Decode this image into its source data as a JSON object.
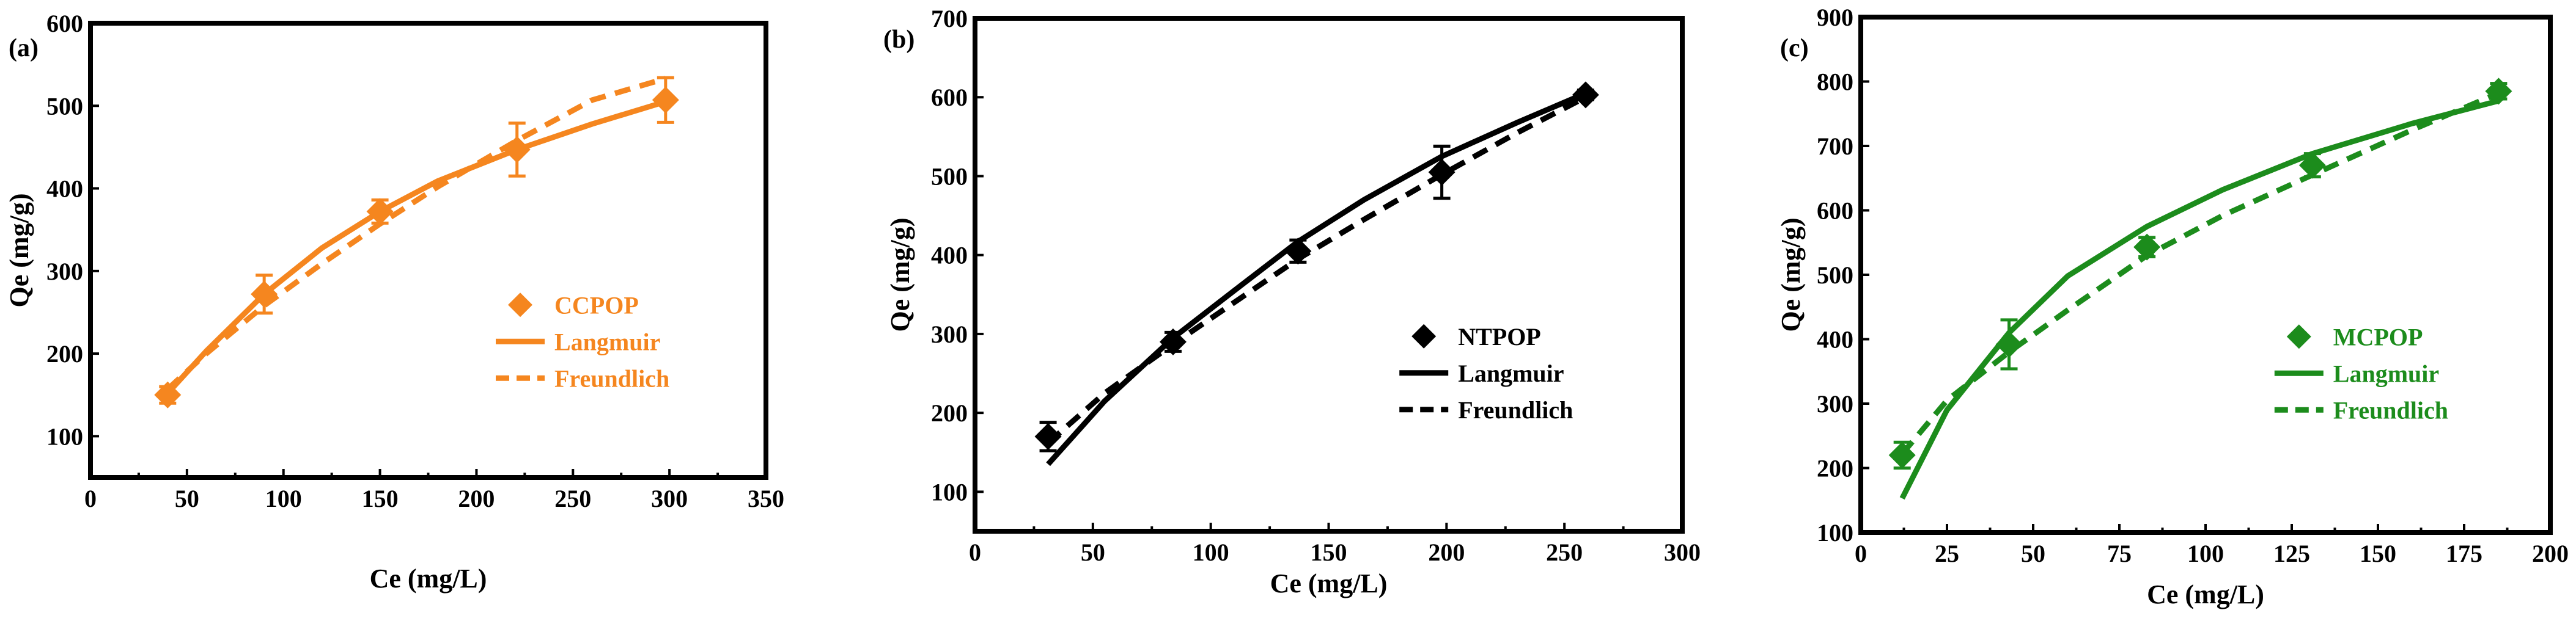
{
  "chart_data": [
    {
      "type": "scatter",
      "panel_label": "(a)",
      "color": "#F5861F",
      "xlabel": "Ce (mg/L)",
      "ylabel": "Qe (mg/g)",
      "xlim": [
        0,
        350
      ],
      "ylim": [
        50,
        600
      ],
      "xticks": [
        0,
        50,
        100,
        150,
        200,
        250,
        300,
        350
      ],
      "yticks": [
        100,
        200,
        300,
        400,
        500,
        600
      ],
      "x_tick_labels": [
        "0",
        "50",
        "100",
        "150",
        "200",
        "250",
        "300",
        "350"
      ],
      "y_tick_labels": [
        "100",
        "200",
        "300",
        "400",
        "500",
        "600"
      ],
      "legend_position": "bottom-right",
      "legend": {
        "points": "CCPOP",
        "langmuir": "Langmuir",
        "freundlich": "Freundlich"
      },
      "series": [
        {
          "name": "CCPOP",
          "kind": "points",
          "x": [
            40,
            90,
            150,
            221,
            298
          ],
          "y": [
            150,
            272,
            372,
            447,
            507
          ],
          "err": [
            10,
            23,
            14,
            32,
            27
          ]
        },
        {
          "name": "Langmuir",
          "kind": "line",
          "style": "solid",
          "x": [
            40,
            60,
            90,
            120,
            150,
            180,
            221,
            260,
            298
          ],
          "y": [
            152,
            203,
            272,
            328,
            372,
            409,
            447,
            478,
            505
          ]
        },
        {
          "name": "Freundlich",
          "kind": "line",
          "style": "dashed",
          "x": [
            40,
            60,
            90,
            120,
            150,
            180,
            221,
            260,
            298
          ],
          "y": [
            157,
            200,
            258,
            309,
            357,
            402,
            458,
            507,
            533
          ]
        }
      ]
    },
    {
      "type": "scatter",
      "panel_label": "(b)",
      "color": "#000000",
      "xlabel": "Ce (mg/L)",
      "ylabel": "Qe (mg/g)",
      "xlim": [
        0,
        300
      ],
      "ylim": [
        50,
        700
      ],
      "xticks": [
        0,
        50,
        100,
        150,
        200,
        250,
        300
      ],
      "yticks": [
        100,
        200,
        300,
        400,
        500,
        600,
        700
      ],
      "x_tick_labels": [
        "0",
        "50",
        "100",
        "150",
        "200",
        "250",
        "300"
      ],
      "y_tick_labels": [
        "100",
        "200",
        "300",
        "400",
        "500",
        "600",
        "700"
      ],
      "legend_position": "bottom-right",
      "legend": {
        "points": "NTPOP",
        "langmuir": "Langmuir",
        "freundlich": "Freundlich"
      },
      "series": [
        {
          "name": "NTPOP",
          "kind": "points",
          "x": [
            31,
            84,
            137,
            198,
            259
          ],
          "y": [
            170,
            290,
            405,
            505,
            603
          ],
          "err": [
            18,
            12,
            14,
            33,
            6
          ]
        },
        {
          "name": "Langmuir",
          "kind": "line",
          "style": "solid",
          "x": [
            31,
            55,
            84,
            110,
            137,
            165,
            198,
            230,
            259
          ],
          "y": [
            135,
            215,
            295,
            355,
            417,
            470,
            525,
            568,
            605
          ]
        },
        {
          "name": "Freundlich",
          "kind": "line",
          "style": "dashed",
          "x": [
            31,
            55,
            84,
            110,
            137,
            165,
            198,
            230,
            259
          ],
          "y": [
            162,
            225,
            287,
            340,
            395,
            445,
            502,
            555,
            600
          ]
        }
      ]
    },
    {
      "type": "scatter",
      "panel_label": "(c)",
      "color": "#1C8C1C",
      "xlabel": "Ce (mg/L)",
      "ylabel": "Qe (mg/g)",
      "xlim": [
        0,
        200
      ],
      "ylim": [
        100,
        900
      ],
      "xticks": [
        0,
        25,
        50,
        75,
        100,
        125,
        150,
        175,
        200
      ],
      "yticks": [
        100,
        200,
        300,
        400,
        500,
        600,
        700,
        800,
        900
      ],
      "x_tick_labels": [
        "0",
        "25",
        "50",
        "75",
        "100",
        "125",
        "150",
        "175",
        "200"
      ],
      "y_tick_labels": [
        "100",
        "200",
        "300",
        "400",
        "500",
        "600",
        "700",
        "800",
        "900"
      ],
      "legend_position": "bottom-right",
      "legend": {
        "points": "MCPOP",
        "langmuir": "Langmuir",
        "freundlich": "Freundlich"
      },
      "series": [
        {
          "name": "MCPOP",
          "kind": "points",
          "x": [
            12,
            43,
            83,
            131,
            185
          ],
          "y": [
            220,
            392,
            543,
            670,
            785
          ],
          "err": [
            20,
            38,
            15,
            18,
            12
          ]
        },
        {
          "name": "Langmuir",
          "kind": "line",
          "style": "solid",
          "x": [
            12,
            25,
            43,
            60,
            83,
            105,
            131,
            160,
            185
          ],
          "y": [
            153,
            290,
            410,
            498,
            575,
            632,
            688,
            735,
            770
          ]
        },
        {
          "name": "Freundlich",
          "kind": "line",
          "style": "dashed",
          "x": [
            12,
            25,
            43,
            60,
            83,
            105,
            131,
            160,
            185
          ],
          "y": [
            222,
            305,
            380,
            445,
            530,
            592,
            655,
            725,
            782
          ]
        }
      ]
    }
  ]
}
